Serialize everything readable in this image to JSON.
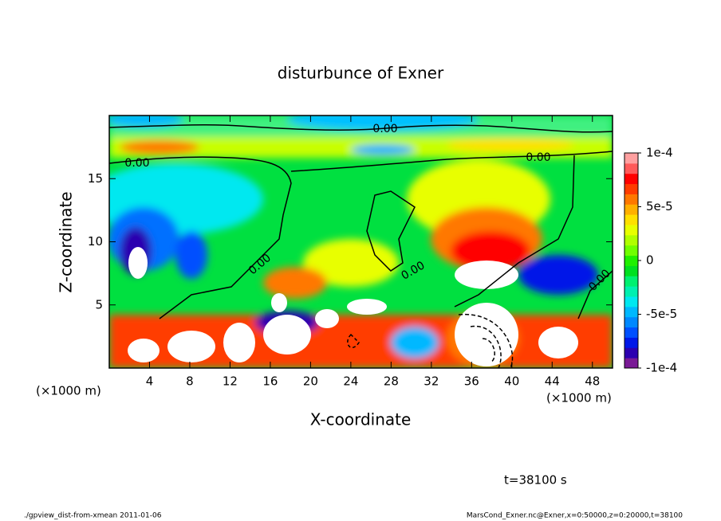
{
  "chart_data": {
    "type": "contour",
    "title": "disturbunce of Exner",
    "x_label": "X-coordinate",
    "y_label": "Z-coordinate",
    "x_unit": "(×1000 m)",
    "y_unit": "(×1000 m)",
    "xlim": [
      0,
      50
    ],
    "xticks": [
      4,
      8,
      12,
      16,
      20,
      24,
      28,
      32,
      36,
      40,
      44,
      48
    ],
    "ylim": [
      0,
      20
    ],
    "yticks": [
      5,
      10,
      15
    ],
    "clim": [
      -0.0001,
      0.0001
    ],
    "cticks": [
      {
        "value": 0.0001,
        "label": "1e-4"
      },
      {
        "value": 5e-05,
        "label": "5e-5"
      },
      0,
      {
        "value": -5e-05,
        "label": "-5e-5"
      },
      {
        "value": -0.0001,
        "label": "-1e-4"
      }
    ],
    "colors": [
      "#7a1a96",
      "#2c00b0",
      "#0018e8",
      "#0050ff",
      "#0088ff",
      "#00b8ff",
      "#00e8f0",
      "#00f0b0",
      "#00f070",
      "#00e020",
      "#20f000",
      "#70ff00",
      "#b0ff00",
      "#e8ff00",
      "#ffe000",
      "#ffb000",
      "#ff7800",
      "#ff3c00",
      "#ff0000",
      "#ff5a5a",
      "#ffa0a0"
    ],
    "contour_labels": [
      "0.00",
      "0.00",
      "0.00",
      "0.00",
      "0.00",
      "0.00"
    ],
    "time_label": "t=38100 s",
    "footer_left": "./gpview_dist-from-xmean  2011-01-06",
    "footer_right": "MarsCond_Exner.nc@Exner,x=0:50000,z=0:20000,t=38100"
  }
}
